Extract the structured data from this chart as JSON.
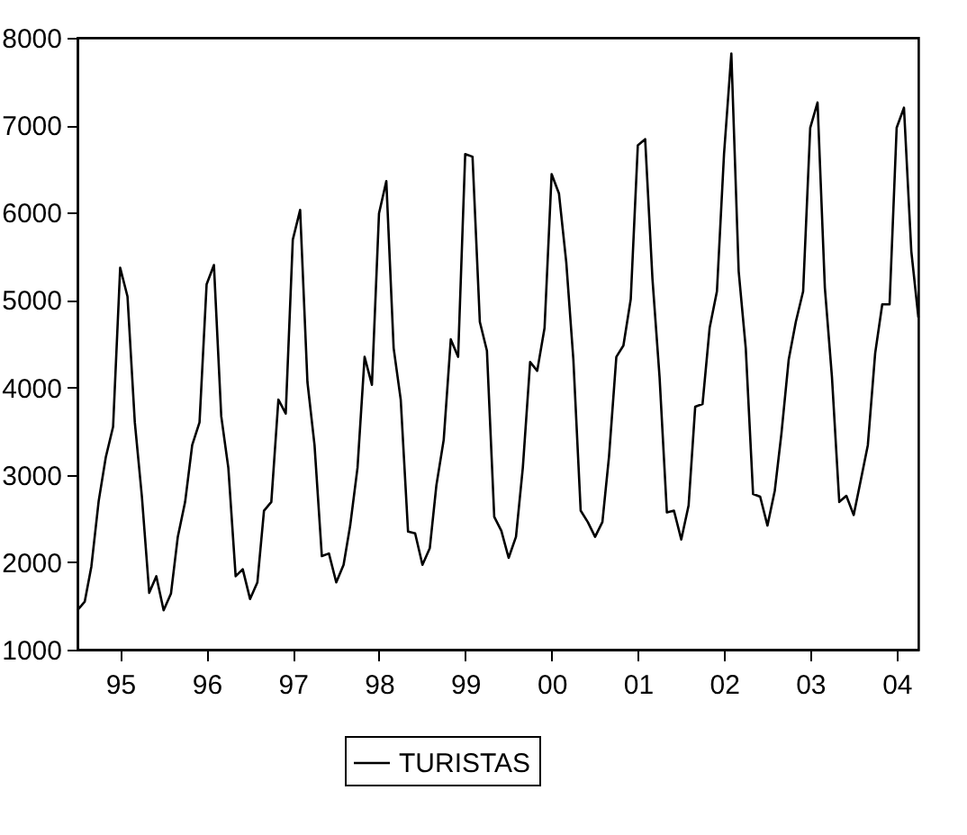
{
  "chart_data": {
    "type": "line",
    "x": [
      "1995-01",
      "1995-02",
      "1995-03",
      "1995-04",
      "1995-05",
      "1995-06",
      "1995-07",
      "1995-08",
      "1995-09",
      "1995-10",
      "1995-11",
      "1995-12",
      "1996-01",
      "1996-02",
      "1996-03",
      "1996-04",
      "1996-05",
      "1996-06",
      "1996-07",
      "1996-08",
      "1996-09",
      "1996-10",
      "1996-11",
      "1996-12",
      "1997-01",
      "1997-02",
      "1997-03",
      "1997-04",
      "1997-05",
      "1997-06",
      "1997-07",
      "1997-08",
      "1997-09",
      "1997-10",
      "1997-11",
      "1997-12",
      "1998-01",
      "1998-02",
      "1998-03",
      "1998-04",
      "1998-05",
      "1998-06",
      "1998-07",
      "1998-08",
      "1998-09",
      "1998-10",
      "1998-11",
      "1998-12",
      "1999-01",
      "1999-02",
      "1999-03",
      "1999-04",
      "1999-05",
      "1999-06",
      "1999-07",
      "1999-08",
      "1999-09",
      "1999-10",
      "1999-11",
      "1999-12",
      "2000-01",
      "2000-02",
      "2000-03",
      "2000-04",
      "2000-05",
      "2000-06",
      "2000-07",
      "2000-08",
      "2000-09",
      "2000-10",
      "2000-11",
      "2000-12",
      "2001-01",
      "2001-02",
      "2001-03",
      "2001-04",
      "2001-05",
      "2001-06",
      "2001-07",
      "2001-08",
      "2001-09",
      "2001-10",
      "2001-11",
      "2001-12",
      "2002-01",
      "2002-02",
      "2002-03",
      "2002-04",
      "2002-05",
      "2002-06",
      "2002-07",
      "2002-08",
      "2002-09",
      "2002-10",
      "2002-11",
      "2002-12",
      "2003-01",
      "2003-02",
      "2003-03",
      "2003-04",
      "2003-05",
      "2003-06",
      "2003-07",
      "2003-08",
      "2003-09",
      "2003-10",
      "2003-11",
      "2003-12",
      "2004-01",
      "2004-02",
      "2004-03",
      "2004-04",
      "2004-05",
      "2004-06",
      "2004-07",
      "2004-08",
      "2004-09",
      "2004-10"
    ],
    "series": [
      {
        "name": "TURISTAS",
        "color": "#000000",
        "values": [
          1450,
          1550,
          1950,
          2700,
          3200,
          3550,
          5370,
          5040,
          3600,
          2750,
          1650,
          1840,
          1450,
          1640,
          2290,
          2690,
          3340,
          3600,
          5180,
          5400,
          3670,
          3080,
          1840,
          1920,
          1580,
          1770,
          2590,
          2690,
          3860,
          3700,
          5690,
          6030,
          4060,
          3340,
          2070,
          2100,
          1770,
          1970,
          2420,
          3080,
          4350,
          4030,
          5990,
          6360,
          4450,
          3860,
          2350,
          2330,
          1970,
          2160,
          2880,
          3400,
          4550,
          4350,
          6670,
          6640,
          4750,
          4420,
          2520,
          2360,
          2050,
          2290,
          3080,
          4290,
          4190,
          4680,
          6440,
          6220,
          5430,
          4320,
          2590,
          2460,
          2290,
          2460,
          3210,
          4350,
          4480,
          5010,
          6770,
          6840,
          5240,
          4120,
          2570,
          2590,
          2260,
          2650,
          3780,
          3810,
          4680,
          5100,
          6670,
          7820,
          5330,
          4450,
          2780,
          2750,
          2420,
          2820,
          3470,
          4320,
          4750,
          5100,
          6970,
          7260,
          5140,
          4120,
          2690,
          2760,
          2540,
          2950,
          3340,
          4390,
          4950,
          4950,
          6970,
          7200,
          5560,
          4800
        ]
      }
    ],
    "xlim": [
      "1995-01",
      "2004-10"
    ],
    "xticks": [
      {
        "value": "1995-07",
        "label": "95"
      },
      {
        "value": "1996-07",
        "label": "96"
      },
      {
        "value": "1997-07",
        "label": "97"
      },
      {
        "value": "1998-07",
        "label": "98"
      },
      {
        "value": "1999-07",
        "label": "99"
      },
      {
        "value": "2000-07",
        "label": "00"
      },
      {
        "value": "2001-07",
        "label": "01"
      },
      {
        "value": "2002-07",
        "label": "02"
      },
      {
        "value": "2003-07",
        "label": "03"
      },
      {
        "value": "2004-07",
        "label": "04"
      }
    ],
    "ylim": [
      1000,
      8000
    ],
    "yticks": [
      1000,
      2000,
      3000,
      4000,
      5000,
      6000,
      7000,
      8000
    ],
    "grid": false,
    "legend": "bottom",
    "marker": "none",
    "line_style": "solid"
  }
}
